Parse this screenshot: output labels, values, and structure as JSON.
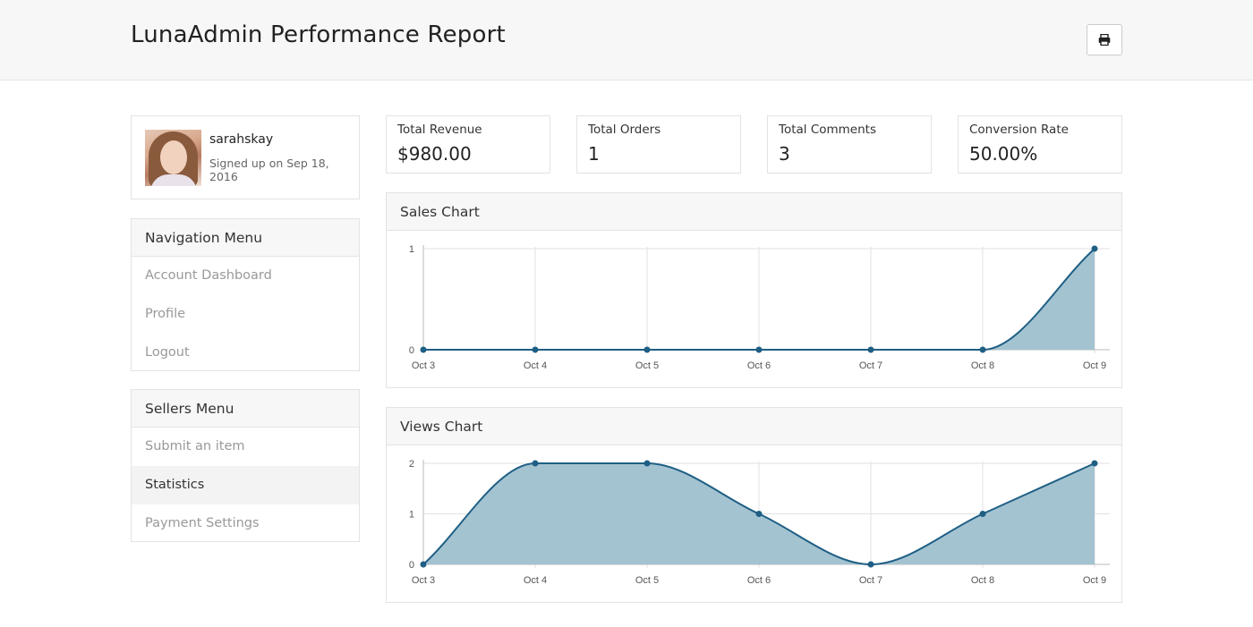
{
  "header": {
    "title": "LunaAdmin Performance Report",
    "print_icon": "print-icon"
  },
  "profile": {
    "username": "sarahskay",
    "signed_up": "Signed up on Sep 18, 2016"
  },
  "navigation_menu": {
    "title": "Navigation Menu",
    "items": [
      {
        "label": "Account Dashboard"
      },
      {
        "label": "Profile"
      },
      {
        "label": "Logout"
      }
    ]
  },
  "sellers_menu": {
    "title": "Sellers Menu",
    "items": [
      {
        "label": "Submit an item"
      },
      {
        "label": "Statistics",
        "active": true
      },
      {
        "label": "Payment Settings"
      }
    ]
  },
  "stats": [
    {
      "label": "Total Revenue",
      "value": "$980.00"
    },
    {
      "label": "Total Orders",
      "value": "1"
    },
    {
      "label": "Total Comments",
      "value": "3"
    },
    {
      "label": "Conversion Rate",
      "value": "50.00%"
    }
  ],
  "colors": {
    "line": "#1f5f85",
    "fill": "#9fc0cf",
    "grid": "#e2e2e2"
  },
  "chart_data": [
    {
      "type": "area",
      "title": "Sales Chart",
      "categories": [
        "Oct 3",
        "Oct 4",
        "Oct 5",
        "Oct 6",
        "Oct 7",
        "Oct 8",
        "Oct 9"
      ],
      "values": [
        0,
        0,
        0,
        0,
        0,
        0,
        1
      ],
      "yticks": [
        0,
        1
      ],
      "ylim": [
        0,
        1
      ],
      "grid": true
    },
    {
      "type": "area",
      "title": "Views Chart",
      "categories": [
        "Oct 3",
        "Oct 4",
        "Oct 5",
        "Oct 6",
        "Oct 7",
        "Oct 8",
        "Oct 9"
      ],
      "values": [
        0,
        2,
        2,
        1,
        0,
        1,
        2
      ],
      "yticks": [
        0,
        1,
        2
      ],
      "ylim": [
        0,
        2
      ],
      "grid": true
    }
  ]
}
